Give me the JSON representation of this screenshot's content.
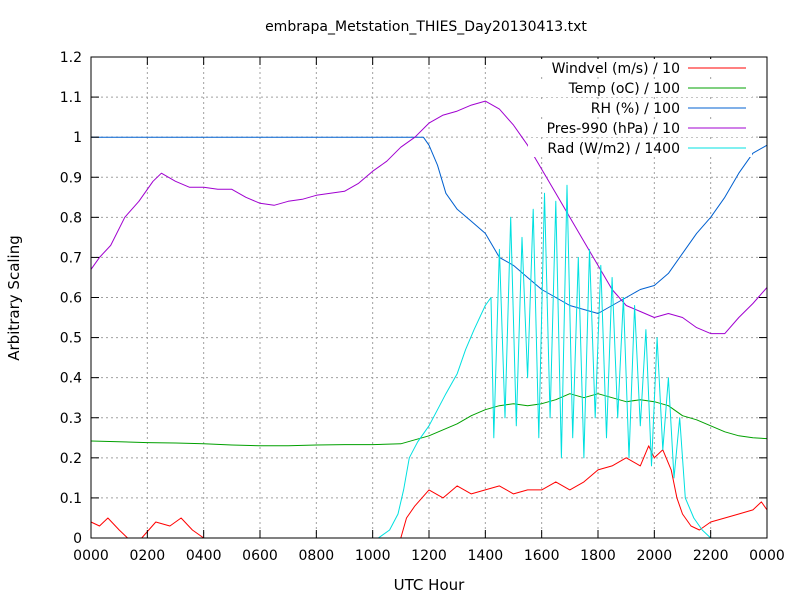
{
  "chart_data": {
    "type": "line",
    "title": "embrapa_Metstation_THIES_Day20130413.txt",
    "xlabel": "UTC Hour",
    "ylabel": "Arbitrary Scaling",
    "xlim": [
      0,
      24
    ],
    "ylim": [
      0,
      1.2
    ],
    "x_ticks": [
      {
        "value": 0,
        "label": "0000"
      },
      {
        "value": 2,
        "label": "0200"
      },
      {
        "value": 4,
        "label": "0400"
      },
      {
        "value": 6,
        "label": "0600"
      },
      {
        "value": 8,
        "label": "0800"
      },
      {
        "value": 10,
        "label": "1000"
      },
      {
        "value": 12,
        "label": "1200"
      },
      {
        "value": 14,
        "label": "1400"
      },
      {
        "value": 16,
        "label": "1600"
      },
      {
        "value": 18,
        "label": "1800"
      },
      {
        "value": 20,
        "label": "2000"
      },
      {
        "value": 22,
        "label": "2200"
      },
      {
        "value": 24,
        "label": "0000"
      }
    ],
    "y_ticks": [
      {
        "value": 0,
        "label": "0"
      },
      {
        "value": 0.1,
        "label": "0.1"
      },
      {
        "value": 0.2,
        "label": "0.2"
      },
      {
        "value": 0.3,
        "label": "0.3"
      },
      {
        "value": 0.4,
        "label": "0.4"
      },
      {
        "value": 0.5,
        "label": "0.5"
      },
      {
        "value": 0.6,
        "label": "0.6"
      },
      {
        "value": 0.7,
        "label": "0.7"
      },
      {
        "value": 0.8,
        "label": "0.8"
      },
      {
        "value": 0.9,
        "label": "0.9"
      },
      {
        "value": 1.0,
        "label": "1"
      },
      {
        "value": 1.1,
        "label": "1.1"
      },
      {
        "value": 1.2,
        "label": "1.2"
      }
    ],
    "grid": true,
    "legend_position": "top-right",
    "series": [
      {
        "name": "Windvel (m/s) / 10",
        "color": "#ff0000",
        "x": [
          0,
          0.3,
          0.6,
          1.0,
          1.3,
          1.8,
          2.3,
          2.8,
          3.2,
          3.6,
          4.0,
          5.0,
          6.0,
          8.0,
          10.0,
          11.0,
          11.2,
          11.5,
          12.0,
          12.5,
          13.0,
          13.5,
          14.0,
          14.5,
          15.0,
          15.5,
          16.0,
          16.5,
          17.0,
          17.5,
          18.0,
          18.5,
          19.0,
          19.5,
          19.8,
          20.0,
          20.3,
          20.6,
          20.8,
          21.0,
          21.3,
          21.6,
          22.0,
          22.5,
          23.0,
          23.5,
          23.8,
          24.0
        ],
        "y": [
          0.04,
          0.03,
          0.05,
          0.02,
          0.0,
          0.0,
          0.04,
          0.03,
          0.05,
          0.02,
          0.0,
          0.0,
          0.0,
          0.0,
          0.0,
          0.0,
          0.05,
          0.08,
          0.12,
          0.1,
          0.13,
          0.11,
          0.12,
          0.13,
          0.11,
          0.12,
          0.12,
          0.14,
          0.12,
          0.14,
          0.17,
          0.18,
          0.2,
          0.18,
          0.23,
          0.2,
          0.22,
          0.17,
          0.1,
          0.06,
          0.03,
          0.02,
          0.04,
          0.05,
          0.06,
          0.07,
          0.09,
          0.07
        ]
      },
      {
        "name": "Temp (oC) / 100",
        "color": "#00a000",
        "x": [
          0,
          1,
          2,
          3,
          4,
          5,
          6,
          7,
          8,
          9,
          10,
          11,
          11.5,
          12,
          12.5,
          13,
          13.5,
          14,
          14.5,
          15,
          15.5,
          16,
          16.5,
          17,
          17.5,
          18,
          18.5,
          19,
          19.5,
          20,
          20.5,
          21,
          21.5,
          22,
          22.5,
          23,
          23.5,
          24
        ],
        "y": [
          0.242,
          0.24,
          0.238,
          0.237,
          0.235,
          0.232,
          0.23,
          0.23,
          0.232,
          0.233,
          0.233,
          0.235,
          0.245,
          0.255,
          0.27,
          0.285,
          0.305,
          0.32,
          0.33,
          0.335,
          0.33,
          0.335,
          0.345,
          0.36,
          0.35,
          0.36,
          0.35,
          0.34,
          0.345,
          0.34,
          0.33,
          0.305,
          0.295,
          0.28,
          0.265,
          0.255,
          0.25,
          0.248
        ]
      },
      {
        "name": "RH (%) / 100",
        "color": "#0060d0",
        "x": [
          0,
          2,
          4,
          6,
          8,
          10,
          11,
          11.8,
          12.0,
          12.3,
          12.6,
          13,
          13.5,
          14,
          14.5,
          15,
          15.5,
          16,
          16.5,
          17,
          17.5,
          18,
          18.5,
          19,
          19.5,
          20,
          20.5,
          21,
          21.5,
          22,
          22.5,
          23,
          23.5,
          24
        ],
        "y": [
          1.0,
          1.0,
          1.0,
          1.0,
          1.0,
          1.0,
          1.0,
          1.0,
          0.98,
          0.93,
          0.86,
          0.82,
          0.79,
          0.76,
          0.7,
          0.68,
          0.65,
          0.62,
          0.6,
          0.58,
          0.57,
          0.56,
          0.58,
          0.6,
          0.62,
          0.63,
          0.66,
          0.71,
          0.76,
          0.8,
          0.85,
          0.91,
          0.96,
          0.98
        ]
      },
      {
        "name": "Pres-990 (hPa) / 10",
        "color": "#a000d0",
        "x": [
          0,
          0.3,
          0.7,
          1.2,
          1.7,
          2.2,
          2.5,
          3.0,
          3.5,
          4.0,
          4.5,
          5.0,
          5.5,
          6.0,
          6.5,
          7.0,
          7.5,
          8.0,
          8.5,
          9.0,
          9.5,
          10.0,
          10.5,
          11.0,
          11.5,
          12.0,
          12.5,
          13.0,
          13.5,
          14.0,
          14.5,
          15.0,
          15.5,
          16.0,
          16.5,
          17.0,
          17.5,
          18.0,
          18.5,
          19.0,
          19.5,
          20.0,
          20.5,
          21.0,
          21.5,
          22.0,
          22.5,
          23.0,
          23.5,
          24.0
        ],
        "y": [
          0.67,
          0.7,
          0.73,
          0.8,
          0.84,
          0.89,
          0.91,
          0.89,
          0.875,
          0.875,
          0.87,
          0.87,
          0.85,
          0.835,
          0.83,
          0.84,
          0.845,
          0.855,
          0.86,
          0.865,
          0.885,
          0.915,
          0.94,
          0.975,
          1.0,
          1.035,
          1.055,
          1.065,
          1.08,
          1.09,
          1.07,
          1.03,
          0.98,
          0.92,
          0.86,
          0.8,
          0.74,
          0.68,
          0.62,
          0.58,
          0.565,
          0.55,
          0.56,
          0.55,
          0.525,
          0.51,
          0.51,
          0.55,
          0.585,
          0.625
        ]
      },
      {
        "name": "Rad (W/m2) / 1400",
        "color": "#00e0e0",
        "x": [
          0,
          2,
          4,
          6,
          8,
          9.5,
          10.2,
          10.6,
          10.9,
          11.1,
          11.3,
          11.6,
          12.0,
          12.3,
          12.6,
          13.0,
          13.3,
          13.6,
          14.0,
          14.2,
          14.3,
          14.5,
          14.7,
          14.9,
          15.1,
          15.3,
          15.5,
          15.7,
          15.9,
          16.1,
          16.3,
          16.5,
          16.7,
          16.9,
          17.1,
          17.3,
          17.5,
          17.7,
          17.9,
          18.1,
          18.3,
          18.5,
          18.7,
          18.9,
          19.1,
          19.3,
          19.5,
          19.7,
          19.9,
          20.1,
          20.3,
          20.5,
          20.7,
          20.9,
          21.1,
          21.4,
          21.7,
          22.0,
          23.0,
          24.0
        ],
        "y": [
          0.0,
          0.0,
          0.0,
          0.0,
          0.0,
          0.0,
          0.0,
          0.02,
          0.06,
          0.12,
          0.2,
          0.24,
          0.28,
          0.32,
          0.36,
          0.41,
          0.47,
          0.52,
          0.58,
          0.6,
          0.25,
          0.72,
          0.3,
          0.8,
          0.28,
          0.75,
          0.4,
          0.82,
          0.25,
          0.86,
          0.3,
          0.84,
          0.2,
          0.88,
          0.25,
          0.7,
          0.2,
          0.72,
          0.3,
          0.68,
          0.25,
          0.65,
          0.3,
          0.6,
          0.2,
          0.58,
          0.28,
          0.52,
          0.18,
          0.5,
          0.22,
          0.4,
          0.15,
          0.3,
          0.1,
          0.05,
          0.02,
          0.0,
          0.0,
          0.0
        ]
      }
    ]
  }
}
